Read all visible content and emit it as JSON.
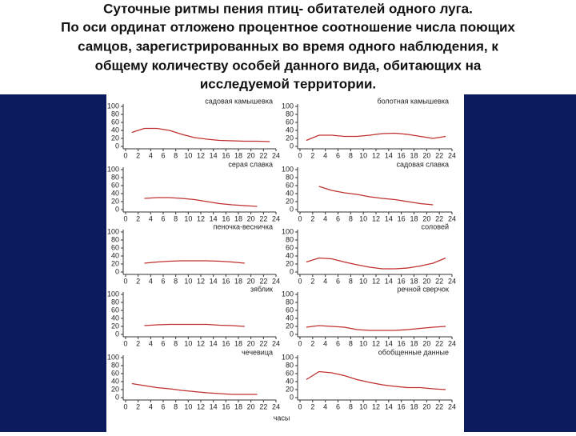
{
  "slide": {
    "title_lines": [
      "Суточные ритмы пения птиц- обитателей одного луга.",
      "По оси ординат отложено процентное соотношение числа поющих",
      "самцов, зарегистрированных во время одного наблюдения, к",
      "общему количеству особей данного вида, обитающих на",
      "исследуемой территории."
    ]
  },
  "chart_data": [
    {
      "type": "line",
      "title": "садовая камышевка",
      "x": [
        1,
        3,
        5,
        7,
        9,
        11,
        13,
        15,
        17,
        19,
        21,
        23
      ],
      "series": [
        {
          "color": "#c0302f",
          "values": [
            35,
            45,
            45,
            40,
            30,
            22,
            18,
            15,
            14,
            13,
            13,
            12
          ]
        }
      ],
      "xlim": [
        0,
        24
      ],
      "ylim": [
        0,
        100
      ],
      "xticks": [
        0,
        2,
        4,
        6,
        8,
        10,
        12,
        14,
        16,
        18,
        20,
        22,
        24
      ],
      "yticks": [
        0,
        20,
        40,
        60,
        80,
        100
      ]
    },
    {
      "type": "line",
      "title": "болотная камышевка",
      "x": [
        1,
        3,
        5,
        7,
        9,
        11,
        13,
        15,
        17,
        19,
        21,
        23
      ],
      "series": [
        {
          "color": "#c0302f",
          "values": [
            15,
            28,
            28,
            25,
            25,
            28,
            32,
            33,
            30,
            25,
            20,
            25
          ]
        }
      ],
      "xlim": [
        0,
        24
      ],
      "ylim": [
        0,
        100
      ],
      "xticks": [
        0,
        2,
        4,
        6,
        8,
        10,
        12,
        14,
        16,
        18,
        20,
        22,
        24
      ],
      "yticks": [
        0,
        20,
        40,
        60,
        80,
        100
      ]
    },
    {
      "type": "line",
      "title": "серая славка",
      "x": [
        1,
        3,
        5,
        7,
        9,
        11,
        13,
        15,
        17,
        19,
        21,
        23
      ],
      "series": [
        {
          "color": "#c0302f",
          "values": [
            null,
            28,
            30,
            30,
            28,
            25,
            20,
            15,
            12,
            10,
            8,
            null
          ]
        }
      ],
      "xlim": [
        0,
        24
      ],
      "ylim": [
        0,
        100
      ],
      "xticks": [
        0,
        2,
        4,
        6,
        8,
        10,
        12,
        14,
        16,
        18,
        20,
        22,
        24
      ],
      "yticks": [
        0,
        20,
        40,
        60,
        80,
        100
      ]
    },
    {
      "type": "line",
      "title": "садовая славка",
      "x": [
        1,
        3,
        5,
        7,
        9,
        11,
        13,
        15,
        17,
        19,
        21,
        23
      ],
      "series": [
        {
          "color": "#c0302f",
          "values": [
            null,
            58,
            48,
            42,
            38,
            32,
            28,
            25,
            20,
            15,
            12,
            null
          ]
        }
      ],
      "xlim": [
        0,
        24
      ],
      "ylim": [
        0,
        100
      ],
      "xticks": [
        0,
        2,
        4,
        6,
        8,
        10,
        12,
        14,
        16,
        18,
        20,
        22,
        24
      ],
      "yticks": [
        0,
        20,
        40,
        60,
        80,
        100
      ]
    },
    {
      "type": "line",
      "title": "пеночка-весничка",
      "x": [
        1,
        3,
        5,
        7,
        9,
        11,
        13,
        15,
        17,
        19,
        21,
        23
      ],
      "series": [
        {
          "color": "#c0302f",
          "values": [
            null,
            22,
            25,
            27,
            28,
            28,
            28,
            27,
            25,
            22,
            null,
            null
          ]
        }
      ],
      "xlim": [
        0,
        24
      ],
      "ylim": [
        0,
        100
      ],
      "xticks": [
        0,
        2,
        4,
        6,
        8,
        10,
        12,
        14,
        16,
        18,
        20,
        22,
        24
      ],
      "yticks": [
        0,
        20,
        40,
        60,
        80,
        100
      ]
    },
    {
      "type": "line",
      "title": "соловей",
      "x": [
        1,
        3,
        5,
        7,
        9,
        11,
        13,
        15,
        17,
        19,
        21,
        23
      ],
      "series": [
        {
          "color": "#c0302f",
          "values": [
            25,
            35,
            33,
            25,
            18,
            12,
            8,
            8,
            10,
            15,
            22,
            35
          ]
        }
      ],
      "xlim": [
        0,
        24
      ],
      "ylim": [
        0,
        100
      ],
      "xticks": [
        0,
        2,
        4,
        6,
        8,
        10,
        12,
        14,
        16,
        18,
        20,
        22,
        24
      ],
      "yticks": [
        0,
        20,
        40,
        60,
        80,
        100
      ]
    },
    {
      "type": "line",
      "title": "зяблик",
      "x": [
        1,
        3,
        5,
        7,
        9,
        11,
        13,
        15,
        17,
        19,
        21,
        23
      ],
      "series": [
        {
          "color": "#c0302f",
          "values": [
            null,
            22,
            24,
            25,
            25,
            25,
            25,
            23,
            22,
            20,
            null,
            null
          ]
        }
      ],
      "xlim": [
        0,
        24
      ],
      "ylim": [
        0,
        100
      ],
      "xticks": [
        0,
        2,
        4,
        6,
        8,
        10,
        12,
        14,
        16,
        18,
        20,
        22,
        24
      ],
      "yticks": [
        0,
        20,
        40,
        60,
        80,
        100
      ]
    },
    {
      "type": "line",
      "title": "речной сверчок",
      "x": [
        1,
        3,
        5,
        7,
        9,
        11,
        13,
        15,
        17,
        19,
        21,
        23
      ],
      "series": [
        {
          "color": "#c0302f",
          "values": [
            18,
            22,
            20,
            18,
            12,
            10,
            10,
            10,
            12,
            15,
            18,
            20
          ]
        }
      ],
      "xlim": [
        0,
        24
      ],
      "ylim": [
        0,
        100
      ],
      "xticks": [
        0,
        2,
        4,
        6,
        8,
        10,
        12,
        14,
        16,
        18,
        20,
        22,
        24
      ],
      "yticks": [
        0,
        20,
        40,
        60,
        80,
        100
      ]
    },
    {
      "type": "line",
      "title": "чечевица",
      "xlabel": "часы",
      "x": [
        1,
        3,
        5,
        7,
        9,
        11,
        13,
        15,
        17,
        19,
        21,
        23
      ],
      "series": [
        {
          "color": "#c0302f",
          "values": [
            35,
            30,
            25,
            22,
            18,
            15,
            12,
            10,
            8,
            8,
            8,
            null
          ]
        }
      ],
      "xlim": [
        0,
        24
      ],
      "ylim": [
        0,
        100
      ],
      "xticks": [
        0,
        2,
        4,
        6,
        8,
        10,
        12,
        14,
        16,
        18,
        20,
        22,
        24
      ],
      "yticks": [
        0,
        20,
        40,
        60,
        80,
        100
      ]
    },
    {
      "type": "line",
      "title": "обобщенные данные",
      "x": [
        1,
        3,
        5,
        7,
        9,
        11,
        13,
        15,
        17,
        19,
        21,
        23
      ],
      "series": [
        {
          "color": "#c0302f",
          "values": [
            45,
            65,
            62,
            55,
            45,
            38,
            32,
            28,
            25,
            25,
            22,
            20
          ]
        }
      ],
      "xlim": [
        0,
        24
      ],
      "ylim": [
        0,
        100
      ],
      "xticks": [
        0,
        2,
        4,
        6,
        8,
        10,
        12,
        14,
        16,
        18,
        20,
        22,
        24
      ],
      "yticks": [
        0,
        20,
        40,
        60,
        80,
        100
      ]
    }
  ]
}
